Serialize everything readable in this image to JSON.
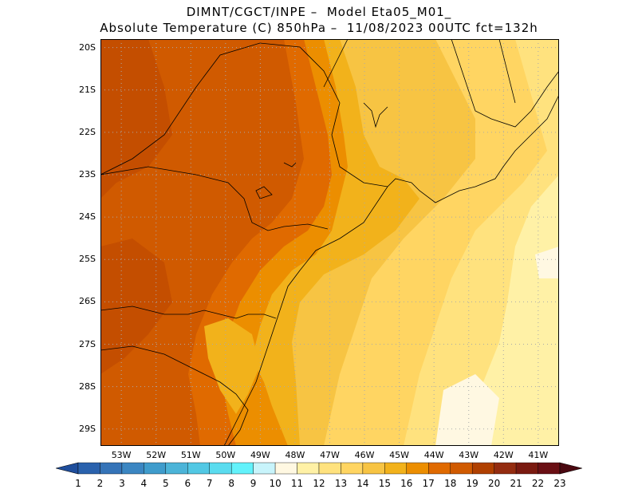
{
  "title_line1": "DIMNT/CGCT/INPE –  Model Eta05_M01_",
  "title_line2": "Absolute Temperature (C) 850hPa –  11/08/2023 00UTC fct=132h",
  "lat_labels": [
    "20S",
    "21S",
    "22S",
    "23S",
    "24S",
    "25S",
    "26S",
    "27S",
    "28S",
    "29S"
  ],
  "lon_labels": [
    "53W",
    "52W",
    "51W",
    "50W",
    "49W",
    "48W",
    "47W",
    "46W",
    "45W",
    "44W",
    "43W",
    "42W",
    "41W"
  ],
  "colorbar": {
    "labels": [
      "1",
      "2",
      "3",
      "4",
      "5",
      "6",
      "7",
      "8",
      "9",
      "10",
      "11",
      "12",
      "13",
      "14",
      "15",
      "16",
      "17",
      "18",
      "19",
      "20",
      "21",
      "22",
      "23"
    ],
    "colors": [
      "#1f4e9c",
      "#2a62ad",
      "#3574b8",
      "#3b86c2",
      "#3f9ccc",
      "#4cb4d8",
      "#52c8e4",
      "#5adcef",
      "#63f2fb",
      "#c8f4fb",
      "#fff8e2",
      "#fff1a6",
      "#ffe27e",
      "#ffd562",
      "#f7c443",
      "#f2b21b",
      "#ec8e00",
      "#e06a00",
      "#d05a00",
      "#b04000",
      "#942c10",
      "#7a1a10",
      "#6a0f14",
      "#4a0810"
    ]
  },
  "map": {
    "lon_range": [
      -53.6,
      -40.4
    ],
    "lat_range": [
      -29.4,
      -19.8
    ],
    "grid": "dotted",
    "field_colors": {
      "deep": "#d05a00",
      "deep_dark": "#c44e00",
      "mid": "#e06a00",
      "orange": "#ec8e00",
      "gold": "#f2b21b",
      "yellow1": "#f7c443",
      "yellow2": "#ffd562",
      "yellow3": "#ffe27e",
      "pale": "#fff1a6",
      "cream": "#fff8e2"
    }
  }
}
